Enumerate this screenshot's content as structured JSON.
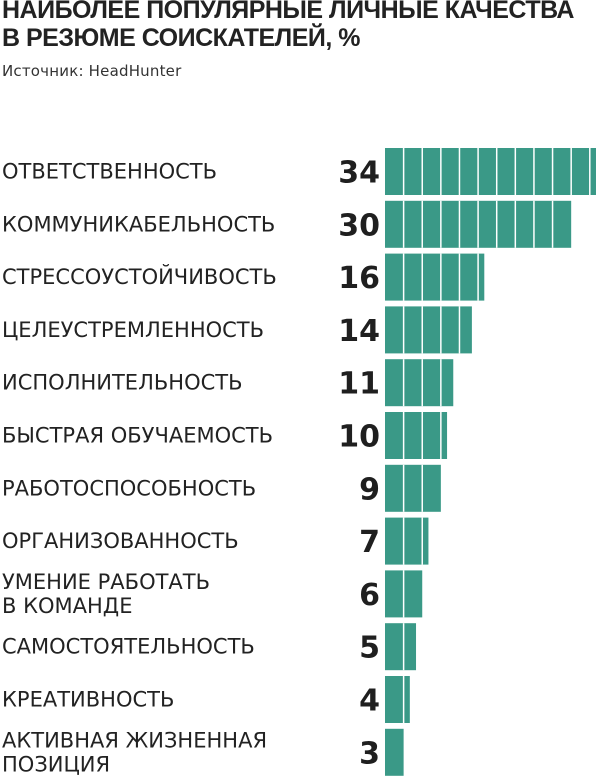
{
  "header": {
    "title_line1": "НАИБОЛЕЕ ПОПУЛЯРНЫЕ ЛИЧНЫЕ КАЧЕСТВА",
    "title_line2": "В РЕЗЮМЕ СОИСКАТЕЛЕЙ, %",
    "source": "Источник: HeadHunter"
  },
  "colors": {
    "bar": "#3a9987",
    "divider": "#ffffff",
    "text": "#222222"
  },
  "chart_data": {
    "type": "bar",
    "orientation": "horizontal",
    "title": "НАИБОЛЕЕ ПОПУЛЯРНЫЕ ЛИЧНЫЕ КАЧЕСТВА В РЕЗЮМЕ СОИСКАТЕЛЕЙ, %",
    "unit": "%",
    "categories": [
      [
        "ОТВЕТСТВЕННОСТЬ"
      ],
      [
        "КОММУНИКАБЕЛЬНОСТЬ"
      ],
      [
        "СТРЕССОУСТОЙЧИВОСТЬ"
      ],
      [
        "ЦЕЛЕУСТРЕМЛЕННОСТЬ"
      ],
      [
        "ИСПОЛНИТЕЛЬНОСТЬ"
      ],
      [
        "БЫСТРАЯ ОБУЧАЕМОСТЬ"
      ],
      [
        "РАБОТОСПОСОБНОСТЬ"
      ],
      [
        "ОРГАНИЗОВАННОСТЬ"
      ],
      [
        "УМЕНИЕ РАБОТАТЬ",
        "В КОМАНДЕ"
      ],
      [
        "САМОСТОЯТЕЛЬНОСТЬ"
      ],
      [
        "КРЕАТИВНОСТЬ"
      ],
      [
        "АКТИВНАЯ ЖИЗНЕННАЯ",
        "ПОЗИЦИЯ"
      ]
    ],
    "values": [
      34,
      30,
      16,
      14,
      11,
      10,
      9,
      7,
      6,
      5,
      4,
      3
    ],
    "xlim": [
      0,
      34
    ],
    "grid": false,
    "legend": "none"
  }
}
